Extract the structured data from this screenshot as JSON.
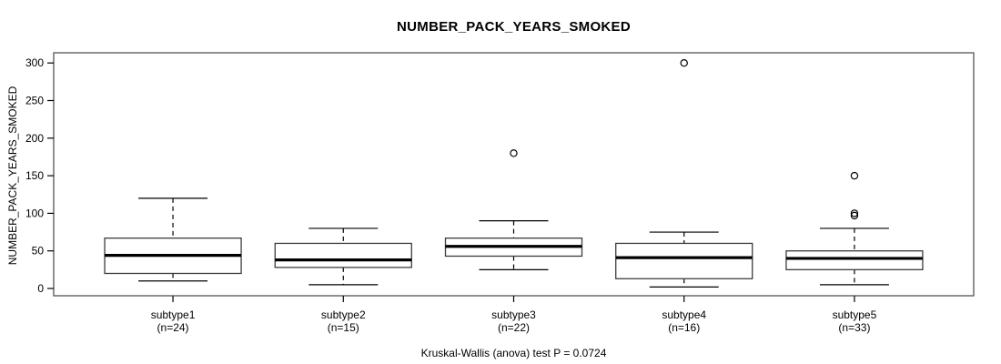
{
  "title": "NUMBER_PACK_YEARS_SMOKED",
  "footer": "Kruskal-Wallis (anova) test P = 0.0724",
  "colors": {
    "line": "#000000",
    "frame": "#555555",
    "box_border": "#3d3d3d",
    "box_fill": "#ffffff",
    "background": "#ffffff"
  },
  "chart_data": {
    "type": "boxplot",
    "title": "NUMBER_PACK_YEARS_SMOKED",
    "xlabel": "",
    "ylabel": "NUMBER_PACK_YEARS_SMOKED",
    "ylim": [
      0,
      300
    ],
    "yticks": [
      0,
      50,
      100,
      150,
      200,
      250,
      300
    ],
    "grid": false,
    "legend": "none",
    "annotation": "Kruskal-Wallis (anova) test P = 0.0724",
    "categories": [
      "subtype1",
      "subtype2",
      "subtype3",
      "subtype4",
      "subtype5"
    ],
    "n_labels": [
      "(n=24)",
      "(n=15)",
      "(n=22)",
      "(n=16)",
      "(n=33)"
    ],
    "series": [
      {
        "name": "subtype1",
        "n": 24,
        "min": 10,
        "q1": 20,
        "median": 44,
        "q3": 67,
        "max": 120,
        "outliers": []
      },
      {
        "name": "subtype2",
        "n": 15,
        "min": 5,
        "q1": 28,
        "median": 38,
        "q3": 60,
        "max": 80,
        "outliers": []
      },
      {
        "name": "subtype3",
        "n": 22,
        "min": 25,
        "q1": 43,
        "median": 56,
        "q3": 67,
        "max": 90,
        "outliers": [
          180
        ]
      },
      {
        "name": "subtype4",
        "n": 16,
        "min": 2,
        "q1": 13,
        "median": 41,
        "q3": 60,
        "max": 75,
        "outliers": [
          300
        ]
      },
      {
        "name": "subtype5",
        "n": 33,
        "min": 5,
        "q1": 25,
        "median": 40,
        "q3": 50,
        "max": 80,
        "outliers": [
          97,
          100,
          150
        ]
      }
    ]
  }
}
